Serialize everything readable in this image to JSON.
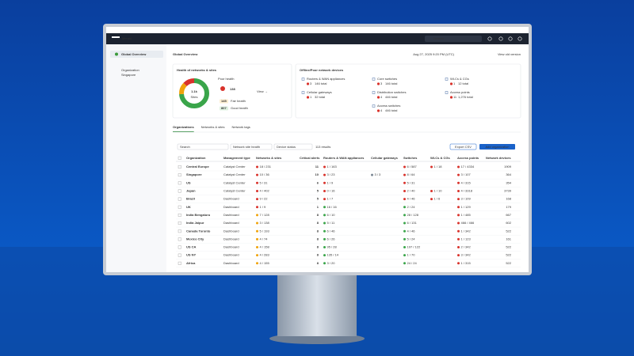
{
  "topbar": {
    "brand": "Meraki",
    "search": "Search"
  },
  "sidebar": {
    "nav": "Global Overview",
    "org_label": "Organization",
    "org": "Singapore"
  },
  "page": {
    "title": "Global Overview",
    "timestamp": "Aug 27, 2025 9:20 PM (UTC)",
    "old_version": "View old version"
  },
  "health": {
    "title": "Health of networks & sites",
    "total": "1.1k",
    "total_label": "Sites",
    "poor_label": "Poor health",
    "poor": 138,
    "view": "View →",
    "fair": 145,
    "fair_label": "Fair health",
    "good": 807,
    "good_label": "Good health"
  },
  "offline": {
    "title": "Offline/Poor network devices",
    "items": [
      {
        "name": "Routers & WAN appliances",
        "offline": "3",
        "total": "146 total"
      },
      {
        "name": "Core switches",
        "offline": "3",
        "total": "146 total"
      },
      {
        "name": "WLCs & CGs",
        "offline": "1",
        "total": "12 total"
      },
      {
        "name": "Cellular gateways",
        "offline": "1",
        "total": "32 total"
      },
      {
        "name": "Distribution switches",
        "offline": "4",
        "total": "446 total"
      },
      {
        "name": "Access points",
        "offline": "11",
        "total": "1,276 total"
      },
      {
        "name": "Access switches",
        "offline": "4",
        "total": "446 total"
      }
    ]
  },
  "tabs": [
    "Organizations",
    "Networks & sites",
    "Network tags"
  ],
  "filters": {
    "search": "Search",
    "health": "Network site health",
    "device": "Device status",
    "results": "113 results",
    "export": "Export CSV",
    "add": "Add organization"
  },
  "table": {
    "columns": [
      "Organization",
      "Management type",
      "Networks & sites",
      "Critical alerts",
      "Routers & WAN appliances",
      "Cellular gateways",
      "Switches",
      "WLCs & CGs",
      "Access points",
      "Network devices"
    ],
    "rows": [
      [
        "Central Europe",
        "Catalyst Center",
        "18 / 231",
        "11",
        "1 / 163",
        "",
        "6 / 587",
        "1 / 18",
        "17 / 4334",
        "1909"
      ],
      [
        "Singapore",
        "Catalyst Center",
        "10 / 36",
        "10",
        "3 / 23",
        "3 / 3",
        "8 / 64",
        "",
        "3 / 107",
        "364"
      ],
      [
        "US",
        "Catalyst Center",
        "5 / 31",
        "6",
        "1 / 9",
        "",
        "5 / 31",
        "",
        "4 / 315",
        "354"
      ],
      [
        "Japan",
        "Catalyst Center",
        "4 / 402",
        "5",
        "0 / 16",
        "",
        "2 / 40",
        "1 / 10",
        "4 / 3318",
        "3739"
      ],
      [
        "Brazil",
        "Dashboard",
        "9 / 22",
        "5",
        "1 / 7",
        "",
        "4 / 46",
        "1 / 6",
        "3 / 109",
        "168"
      ],
      [
        "UK",
        "Dashboard",
        "1 / 9",
        "1",
        "16 / 16",
        "",
        "2 / 24",
        "",
        "1 / 129",
        "179"
      ],
      [
        "India Bengaluru",
        "Dashboard",
        "7 / 128",
        "8",
        "6 / 10",
        "",
        "28 / 128",
        "",
        "1 / 485",
        "667"
      ],
      [
        "India Jaipur",
        "Dashboard",
        "3 / 138",
        "8",
        "5 / 11",
        "",
        "6 / 131",
        "",
        "466 / 466",
        "602"
      ],
      [
        "Canada Toronto",
        "Dashboard",
        "5 / 193",
        "8",
        "6 / 46",
        "",
        "4 / 46",
        "",
        "1 / 342",
        "522"
      ],
      [
        "Mexico City",
        "Dashboard",
        "4 / 74",
        "8",
        "6 / 26",
        "",
        "5 / 24",
        "",
        "1 / 123",
        "161"
      ],
      [
        "US CA",
        "Dashboard",
        "4 / 158",
        "8",
        "95 / 28",
        "",
        "197 / 122",
        "",
        "2 / 342",
        "522"
      ],
      [
        "US NY",
        "Dashboard",
        "4 / 283",
        "8",
        "135 / 14",
        "",
        "1 / 70",
        "",
        "3 / 342",
        "522"
      ],
      [
        "Africa",
        "Dashboard",
        "4 / 155",
        "8",
        "3 / 20",
        "",
        "24 / 24",
        "",
        "1 / 315",
        "522"
      ]
    ]
  }
}
